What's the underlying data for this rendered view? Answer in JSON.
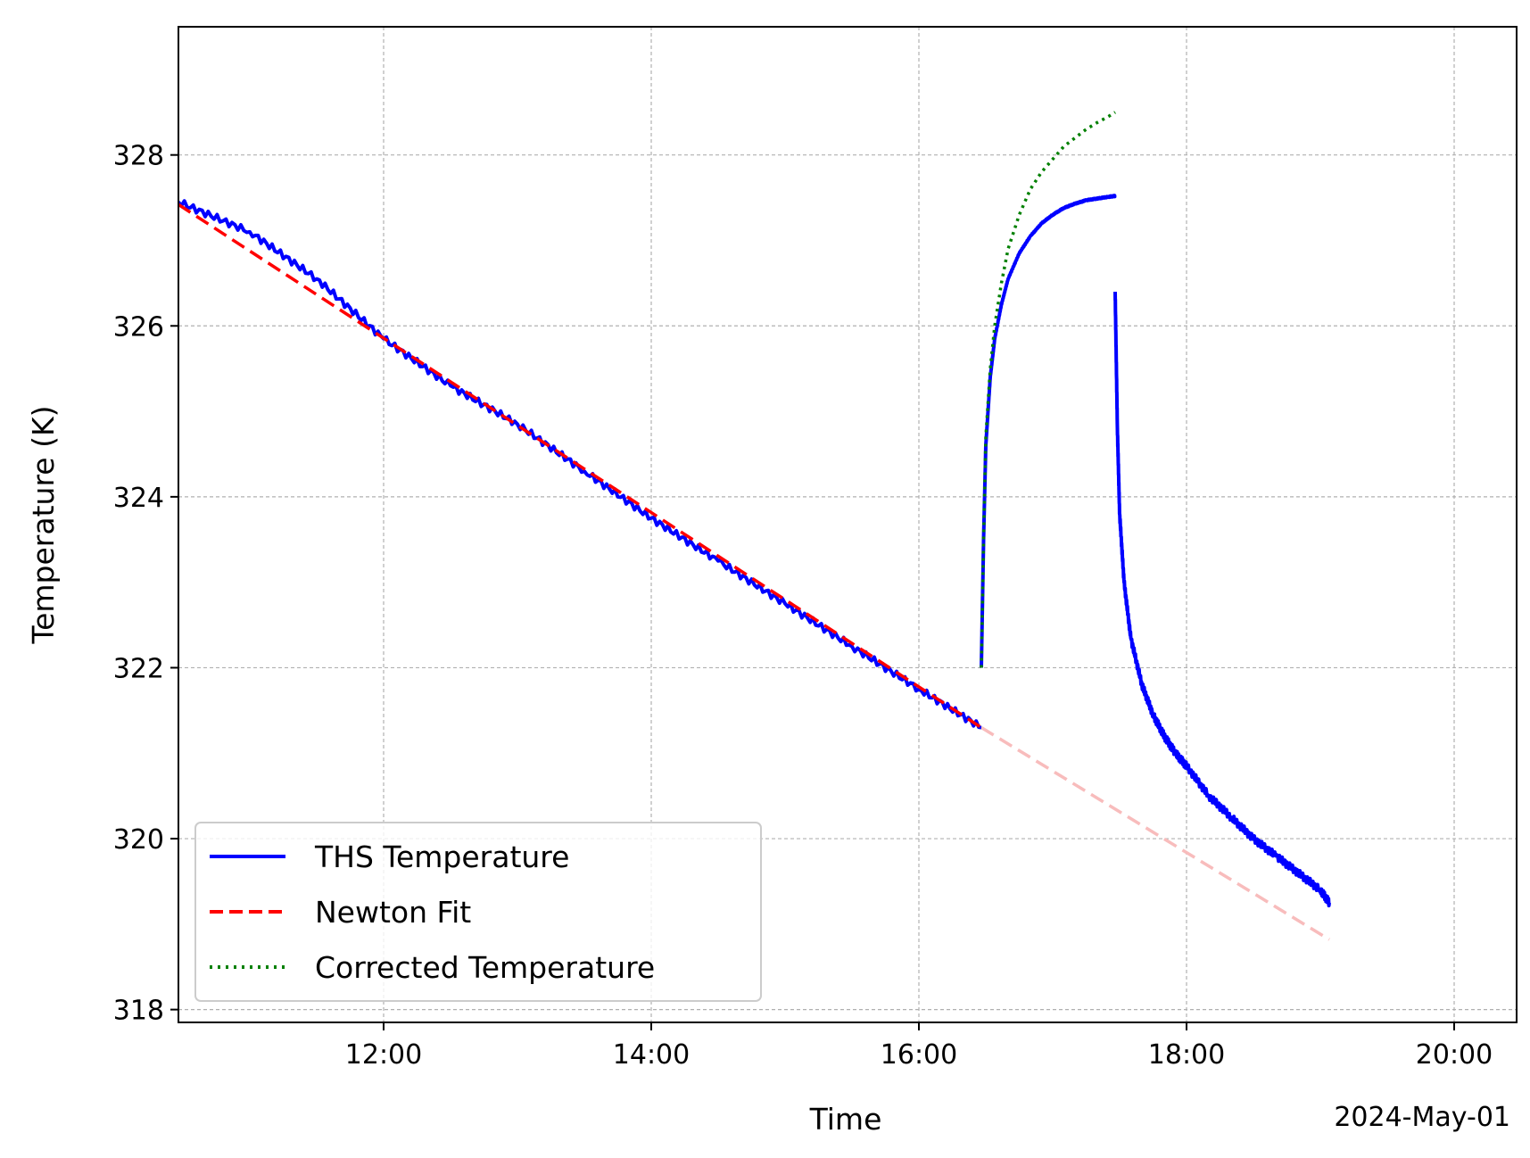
{
  "chart_data": {
    "type": "line",
    "title": "",
    "xlabel": "Time",
    "ylabel": "Temperature (K)",
    "x_offset_label": "2024-May-01",
    "x_tick_labels": [
      "12:00",
      "14:00",
      "16:00",
      "18:00",
      "20:00"
    ],
    "y_tick_labels": [
      "318",
      "320",
      "322",
      "324",
      "326",
      "328"
    ],
    "x_ticks": [
      "12:00",
      "14:00",
      "16:00",
      "18:00",
      "20:00"
    ],
    "y_ticks": [
      318,
      320,
      322,
      324,
      326,
      328
    ],
    "xlim": [
      "10:28",
      "20:28"
    ],
    "ylim": [
      317.85,
      329.5
    ],
    "grid": true,
    "legend_position": "lower-left",
    "series": [
      {
        "name": "THS Temperature",
        "color": "#0000ff",
        "style": "solid",
        "segments": [
          {
            "x": [
              "10:28",
              "11:00",
              "11:30",
              "12:00",
              "12:30",
              "13:00",
              "13:30",
              "14:00",
              "14:30",
              "15:00",
              "15:30",
              "16:00",
              "16:28"
            ],
            "y": [
              327.45,
              327.1,
              326.55,
              325.85,
              325.3,
              324.85,
              324.3,
              323.75,
              323.25,
              322.75,
              322.25,
              321.75,
              321.3
            ]
          },
          {
            "x": [
              "16:28",
              "16:29",
              "16:30",
              "16:32",
              "16:34",
              "16:37",
              "16:40",
              "16:45",
              "16:50",
              "16:55",
              "17:00",
              "17:05",
              "17:10",
              "17:15",
              "17:20",
              "17:25",
              "17:28"
            ],
            "y": [
              322.0,
              323.5,
              324.6,
              325.4,
              325.85,
              326.25,
              326.55,
              326.85,
              327.05,
              327.2,
              327.3,
              327.38,
              327.43,
              327.47,
              327.49,
              327.51,
              327.52
            ]
          },
          {
            "x": [
              "17:28",
              "17:29",
              "17:30",
              "17:32",
              "17:35",
              "17:40",
              "17:45",
              "17:50",
              "17:55",
              "18:00",
              "18:10",
              "18:20",
              "18:30",
              "18:40",
              "18:50",
              "19:00",
              "19:04"
            ],
            "y": [
              326.4,
              324.8,
              323.8,
              323.0,
              322.35,
              321.8,
              321.45,
              321.2,
              321.0,
              320.85,
              320.5,
              320.25,
              320.0,
              319.8,
              319.6,
              319.4,
              319.25
            ]
          }
        ]
      },
      {
        "name": "Newton Fit",
        "color": "#ff0000",
        "style": "dashed",
        "x": [
          "10:28",
          "16:28"
        ],
        "y": [
          327.42,
          321.3
        ]
      },
      {
        "name": "",
        "color": "#f8bcbc",
        "style": "dashed",
        "x": [
          "16:28",
          "19:04"
        ],
        "y": [
          321.3,
          318.82
        ]
      },
      {
        "name": "Corrected Temperature",
        "color": "#008000",
        "style": "dotted",
        "x": [
          "16:28",
          "16:29",
          "16:30",
          "16:32",
          "16:34",
          "16:37",
          "16:40",
          "16:45",
          "16:50",
          "16:55",
          "17:00",
          "17:05",
          "17:10",
          "17:15",
          "17:20",
          "17:25",
          "17:28"
        ],
        "y": [
          322.0,
          323.5,
          324.7,
          325.5,
          326.0,
          326.5,
          326.9,
          327.3,
          327.6,
          327.8,
          327.95,
          328.1,
          328.2,
          328.3,
          328.38,
          328.45,
          328.5
        ]
      }
    ]
  }
}
